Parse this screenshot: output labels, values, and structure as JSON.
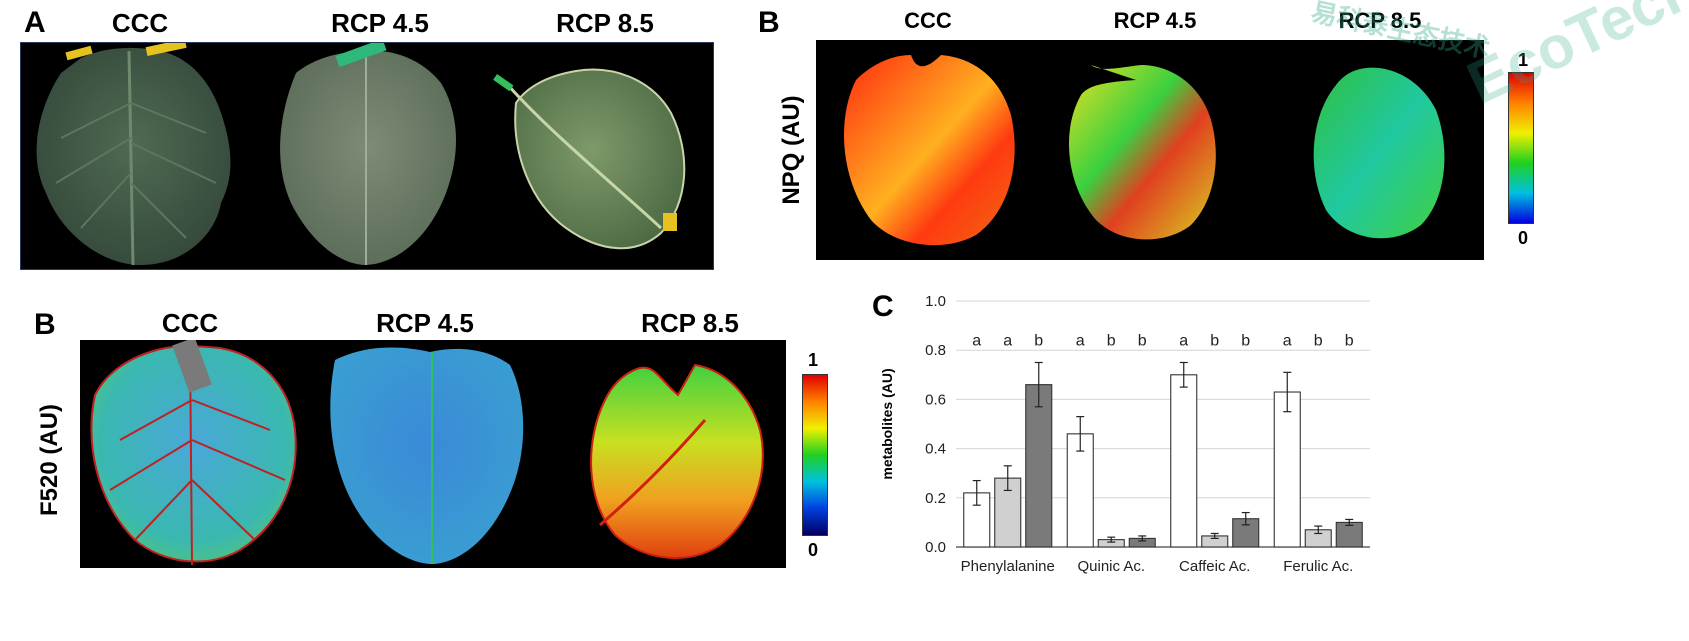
{
  "panel_a": {
    "letter": "A",
    "conditions": [
      "CCC",
      "RCP 4.5",
      "RCP 8.5"
    ]
  },
  "panel_b_npq": {
    "letter": "B",
    "conditions": [
      "CCC",
      "RCP 4.5",
      "RCP 8.5"
    ],
    "ylabel": "NPQ (AU)",
    "colorbar": {
      "max_label": "1",
      "min_label": "0"
    }
  },
  "panel_b_f520": {
    "letter": "B",
    "conditions": [
      "CCC",
      "RCP 4.5",
      "RCP 8.5"
    ],
    "ylabel": "F520 (AU)",
    "colorbar": {
      "max_label": "1",
      "min_label": "0"
    }
  },
  "watermark": {
    "latin": "EcoTech",
    "cjk": "易科泰生态技术",
    "mark": "®",
    "color": "#2fa98a"
  },
  "chart_data": {
    "type": "bar",
    "panel_letter": "C",
    "title": "",
    "xlabel": "",
    "ylabel": "metabolites (AU)",
    "ylim": [
      0,
      1.0
    ],
    "yticks": [
      "0.0",
      "0.2",
      "0.4",
      "0.6",
      "0.8",
      "1.0"
    ],
    "grid": true,
    "legend": "none",
    "categories": [
      "Phenylalanine",
      "Quinic Ac.",
      "Caffeic Ac.",
      "Ferulic Ac."
    ],
    "series": [
      {
        "color": "#ffffff",
        "values": [
          0.22,
          0.46,
          0.7,
          0.63
        ],
        "errors": [
          0.05,
          0.07,
          0.05,
          0.08
        ]
      },
      {
        "color": "#d0d0d0",
        "values": [
          0.28,
          0.03,
          0.045,
          0.07
        ],
        "errors": [
          0.05,
          0.01,
          0.01,
          0.015
        ]
      },
      {
        "color": "#7a7a7a",
        "values": [
          0.66,
          0.035,
          0.115,
          0.1
        ],
        "errors": [
          0.09,
          0.01,
          0.025,
          0.012
        ]
      }
    ],
    "significance_letters": [
      [
        "a",
        "a",
        "b"
      ],
      [
        "a",
        "b",
        "b"
      ],
      [
        "a",
        "b",
        "b"
      ],
      [
        "a",
        "b",
        "b"
      ]
    ]
  }
}
